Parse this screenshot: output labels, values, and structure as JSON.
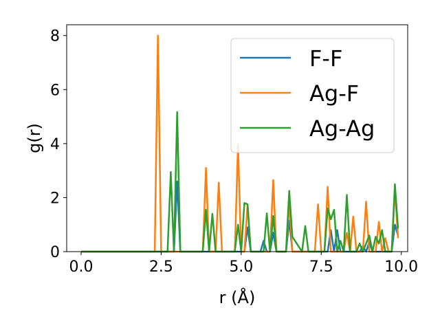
{
  "chart_data": {
    "type": "line",
    "title": "",
    "xlabel": "r (Å)",
    "ylabel": "g(r)",
    "xlim": [
      -0.45,
      10.2
    ],
    "ylim": [
      0,
      8.4
    ],
    "xticks": [
      0.0,
      2.5,
      5.0,
      7.5,
      10.0
    ],
    "xtick_labels": [
      "0.0",
      "2.5",
      "5.0",
      "7.5",
      "10.0"
    ],
    "yticks": [
      0,
      2,
      4,
      6,
      8
    ],
    "ytick_labels": [
      "0",
      "2",
      "4",
      "6",
      "8"
    ],
    "grid": false,
    "legend_position": "upper right",
    "series": [
      {
        "name": "F-F",
        "color": "#1f77b4",
        "points": [
          [
            0,
            0
          ],
          [
            2.9,
            0
          ],
          [
            3.0,
            2.6
          ],
          [
            3.1,
            0
          ],
          [
            5.1,
            0
          ],
          [
            5.2,
            0.9
          ],
          [
            5.3,
            0
          ],
          [
            5.6,
            0
          ],
          [
            5.7,
            0.4
          ],
          [
            5.8,
            0
          ],
          [
            5.9,
            0
          ],
          [
            6.0,
            0.7
          ],
          [
            6.1,
            0
          ],
          [
            6.4,
            0
          ],
          [
            6.5,
            1.15
          ],
          [
            6.6,
            0
          ],
          [
            7.7,
            0
          ],
          [
            7.8,
            0.8
          ],
          [
            7.9,
            0
          ],
          [
            8.0,
            0.8
          ],
          [
            8.1,
            0
          ],
          [
            8.7,
            0
          ],
          [
            8.8,
            0.2
          ],
          [
            8.9,
            0
          ],
          [
            9.0,
            0.35
          ],
          [
            9.1,
            0
          ],
          [
            9.7,
            0
          ],
          [
            9.8,
            1.0
          ],
          [
            9.9,
            0.6
          ]
        ]
      },
      {
        "name": "Ag-F",
        "color": "#ff7f0e",
        "points": [
          [
            0,
            0
          ],
          [
            2.3,
            0
          ],
          [
            2.4,
            8.0
          ],
          [
            2.5,
            0
          ],
          [
            3.8,
            0
          ],
          [
            3.9,
            3.1
          ],
          [
            4.0,
            0
          ],
          [
            4.2,
            0
          ],
          [
            4.3,
            2.55
          ],
          [
            4.4,
            0
          ],
          [
            4.8,
            0
          ],
          [
            4.9,
            3.95
          ],
          [
            5.0,
            0
          ],
          [
            5.1,
            0
          ],
          [
            5.2,
            1.75
          ],
          [
            5.3,
            0
          ],
          [
            5.9,
            0
          ],
          [
            6.0,
            2.65
          ],
          [
            6.1,
            0
          ],
          [
            6.4,
            0
          ],
          [
            6.5,
            1.8
          ],
          [
            6.6,
            0
          ],
          [
            7.3,
            0
          ],
          [
            7.4,
            1.75
          ],
          [
            7.5,
            0
          ],
          [
            7.6,
            0
          ],
          [
            7.7,
            2.4
          ],
          [
            7.8,
            0
          ],
          [
            8.2,
            0
          ],
          [
            8.3,
            0.7
          ],
          [
            8.4,
            0
          ],
          [
            8.5,
            1.3
          ],
          [
            8.6,
            0
          ],
          [
            8.8,
            0
          ],
          [
            8.9,
            1.85
          ],
          [
            9.0,
            0
          ],
          [
            9.2,
            0
          ],
          [
            9.3,
            1.1
          ],
          [
            9.4,
            0
          ],
          [
            9.5,
            0.5
          ],
          [
            9.6,
            0
          ],
          [
            9.7,
            0
          ],
          [
            9.8,
            2.3
          ],
          [
            9.9,
            0.5
          ]
        ]
      },
      {
        "name": "Ag-Ag",
        "color": "#2ca02c",
        "points": [
          [
            0,
            0
          ],
          [
            2.7,
            0
          ],
          [
            2.8,
            2.95
          ],
          [
            2.9,
            0
          ],
          [
            3.0,
            5.17
          ],
          [
            3.1,
            0
          ],
          [
            3.8,
            0
          ],
          [
            3.9,
            1.55
          ],
          [
            4.0,
            0
          ],
          [
            4.1,
            1.4
          ],
          [
            4.2,
            0
          ],
          [
            4.8,
            0
          ],
          [
            4.9,
            1.0
          ],
          [
            5.0,
            0
          ],
          [
            5.1,
            1.8
          ],
          [
            5.2,
            1.75
          ],
          [
            5.3,
            0
          ],
          [
            5.7,
            0
          ],
          [
            5.8,
            1.42
          ],
          [
            5.9,
            0
          ],
          [
            6.0,
            1.32
          ],
          [
            6.1,
            0
          ],
          [
            6.4,
            0
          ],
          [
            6.5,
            2.25
          ],
          [
            6.6,
            0.55
          ],
          [
            6.9,
            0
          ],
          [
            7.0,
            0.95
          ],
          [
            7.1,
            0
          ],
          [
            7.6,
            0
          ],
          [
            7.7,
            1.6
          ],
          [
            7.8,
            1.2
          ],
          [
            7.9,
            1.55
          ],
          [
            8.0,
            0
          ],
          [
            8.1,
            0.4
          ],
          [
            8.2,
            0
          ],
          [
            8.3,
            2.1
          ],
          [
            8.4,
            0
          ],
          [
            8.6,
            0
          ],
          [
            8.7,
            0.3
          ],
          [
            8.8,
            0
          ],
          [
            8.9,
            0.3
          ],
          [
            9.0,
            0.6
          ],
          [
            9.1,
            0
          ],
          [
            9.2,
            0.55
          ],
          [
            9.3,
            0.3
          ],
          [
            9.4,
            0.8
          ],
          [
            9.5,
            0
          ],
          [
            9.7,
            0
          ],
          [
            9.8,
            2.5
          ],
          [
            9.9,
            0.85
          ]
        ]
      }
    ]
  }
}
